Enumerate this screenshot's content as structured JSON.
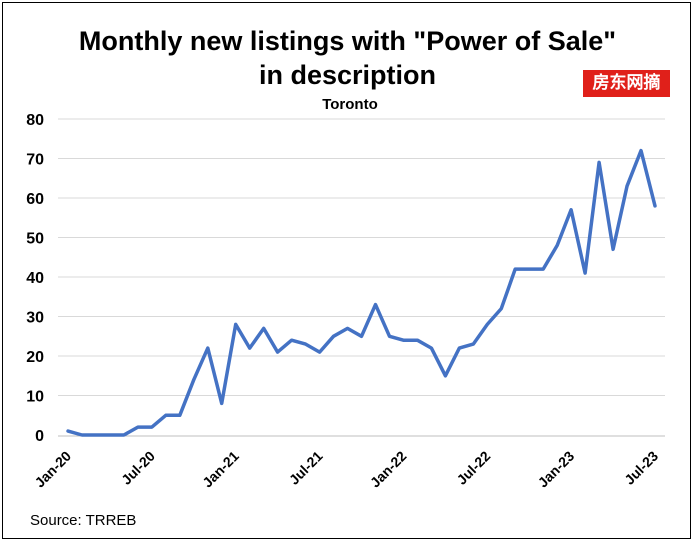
{
  "chart_data": {
    "type": "line",
    "title_line1": "Monthly new listings with \"Power of Sale\"",
    "title_line2": "in description",
    "subtitle": "Toronto",
    "source": "Source:  TRREB",
    "watermark": "房东网摘",
    "ylim": [
      0,
      80
    ],
    "yticks": [
      0,
      10,
      20,
      30,
      40,
      50,
      60,
      70,
      80
    ],
    "grid": true,
    "x_tick_labels": [
      "Jan-20",
      "Jul-20",
      "Jan-21",
      "Jul-21",
      "Jan-22",
      "Jul-22",
      "Jan-23",
      "Jul-23"
    ],
    "x_tick_index": [
      0,
      6,
      12,
      18,
      24,
      30,
      36,
      42
    ],
    "series": [
      {
        "color": "#4472c4",
        "values": [
          1,
          0,
          0,
          0,
          0,
          2,
          2,
          5,
          5,
          14,
          22,
          8,
          28,
          22,
          27,
          21,
          24,
          23,
          21,
          25,
          27,
          25,
          33,
          25,
          24,
          24,
          22,
          15,
          22,
          23,
          28,
          32,
          42,
          42,
          42,
          48,
          57,
          41,
          69,
          47,
          63,
          72,
          58
        ]
      }
    ]
  }
}
